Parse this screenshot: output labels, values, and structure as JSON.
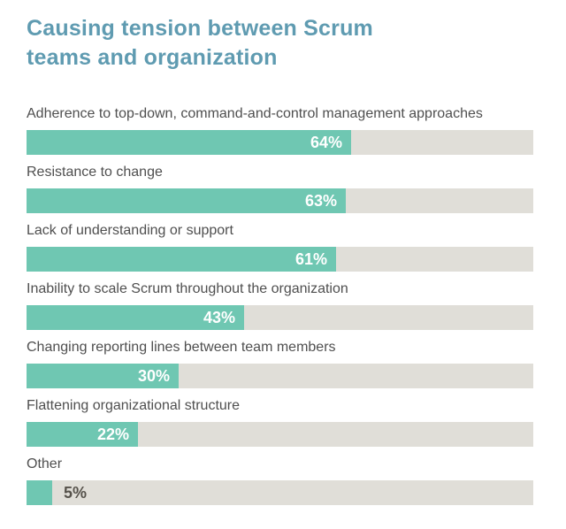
{
  "page": {
    "background": "#ffffff",
    "title_line1": "Causing tension between Scrum",
    "title_line2": "teams and organization"
  },
  "colors": {
    "title_text": "#5f9bb1",
    "bar_fill": "#6fc7b2",
    "bar_track": "#e0ded8",
    "category_label_text": "#4f4f4f",
    "value_label_inside": "#ffffff",
    "value_label_outside": "#56524b"
  },
  "chart_data": {
    "type": "bar",
    "orientation": "horizontal",
    "title": "Causing tension between Scrum teams and organization",
    "categories": [
      "Adherence to top-down, command-and-control management approaches",
      "Resistance to change",
      "Lack of understanding or support",
      "Inability to scale Scrum throughout the organization",
      "Changing reporting lines between team members",
      "Flattening organizational structure",
      "Other"
    ],
    "values": [
      64,
      63,
      61,
      43,
      30,
      22,
      5
    ],
    "value_labels": [
      "64%",
      "63%",
      "61%",
      "43%",
      "30%",
      "22%",
      "5%"
    ],
    "value_suffix": "%",
    "xlim": [
      0,
      100
    ],
    "grid": false,
    "legend": false,
    "value_label_position_rule": "inside right-aligned; outside fill when value too small (Other 5%)"
  }
}
